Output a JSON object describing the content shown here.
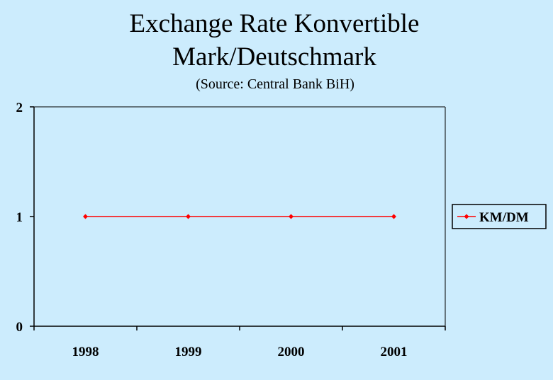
{
  "chart_data": {
    "type": "line",
    "title_lines": [
      "Exchange Rate Konvertible",
      "Mark/Deutschmark"
    ],
    "subtitle": "(Source: Central Bank BiH)",
    "categories": [
      "1998",
      "1999",
      "2000",
      "2001"
    ],
    "series": [
      {
        "name": "KM/DM",
        "values": [
          1,
          1,
          1,
          1
        ],
        "color": "#ff0000"
      }
    ],
    "ylim": [
      0,
      2
    ],
    "yticks": [
      "0",
      "1",
      "2"
    ],
    "grid": false,
    "legend_position": "right",
    "background_color": "#ccecfd",
    "axis_color": "#000000"
  }
}
